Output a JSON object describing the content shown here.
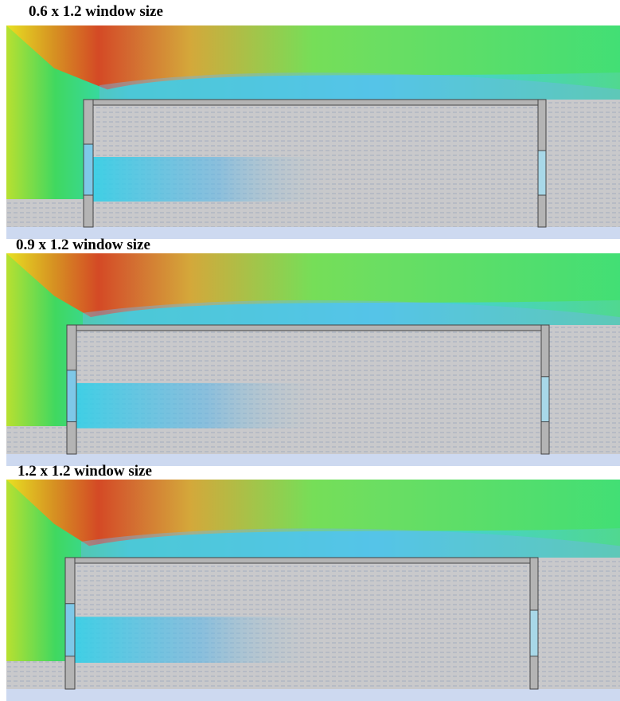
{
  "panels": [
    {
      "label": "0.6 x 1.2 window size"
    },
    {
      "label": "0.9 x 1.2 window size"
    },
    {
      "label": "1.2 x 1.2 window size"
    }
  ]
}
